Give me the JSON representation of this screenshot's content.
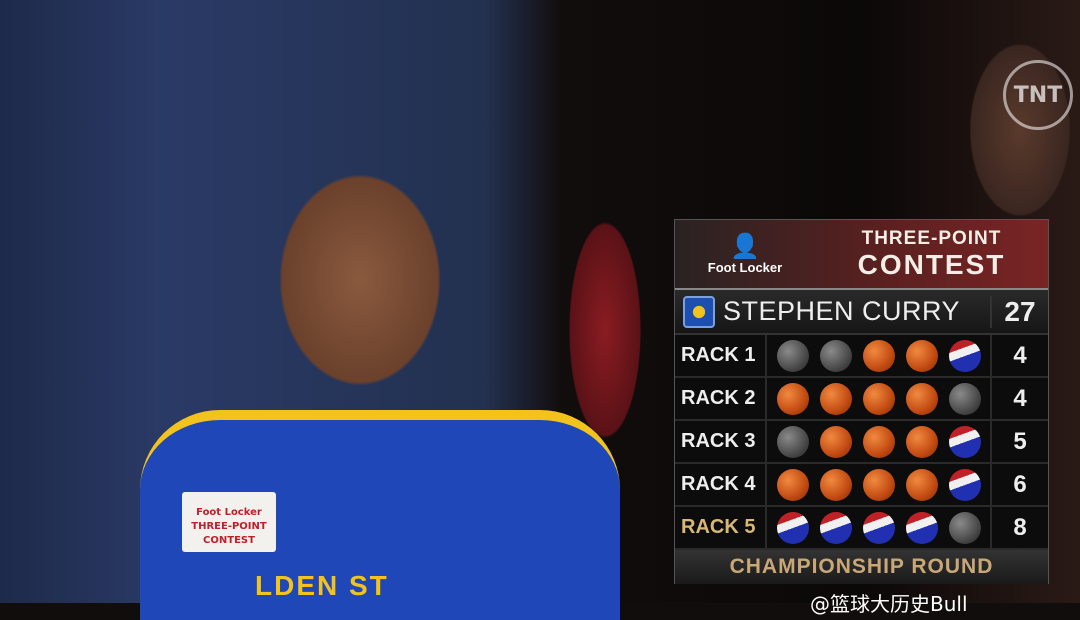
{
  "broadcast": {
    "network_logo": "TNT",
    "watermark": "@篮球大历史Bull"
  },
  "jersey": {
    "patch_text": "Foot Locker THREE-POINT CONTEST",
    "lettering": "LDEN ST"
  },
  "scoreboard": {
    "sponsor": "Foot Locker",
    "title_line1": "THREE-POINT",
    "title_line2": "CONTEST",
    "player": "STEPHEN CURRY",
    "total": "27",
    "round": "CHAMPIONSHIP ROUND",
    "colors": {
      "make": "#d4581a",
      "miss": "#5a5a5a",
      "money_ball": "#2030b0",
      "round_label": "#c9a777"
    },
    "racks": [
      {
        "label": "RACK 1",
        "score": "4",
        "balls": [
          "miss",
          "miss",
          "make",
          "make",
          "money"
        ]
      },
      {
        "label": "RACK 2",
        "score": "4",
        "balls": [
          "make",
          "make",
          "make",
          "make",
          "miss"
        ]
      },
      {
        "label": "RACK 3",
        "score": "5",
        "balls": [
          "miss",
          "make",
          "make",
          "make",
          "money"
        ]
      },
      {
        "label": "RACK 4",
        "score": "6",
        "balls": [
          "make",
          "make",
          "make",
          "make",
          "money"
        ]
      },
      {
        "label": "RACK 5",
        "score": "8",
        "balls": [
          "money",
          "money",
          "money",
          "money",
          "miss"
        ],
        "money_rack": true
      }
    ]
  }
}
